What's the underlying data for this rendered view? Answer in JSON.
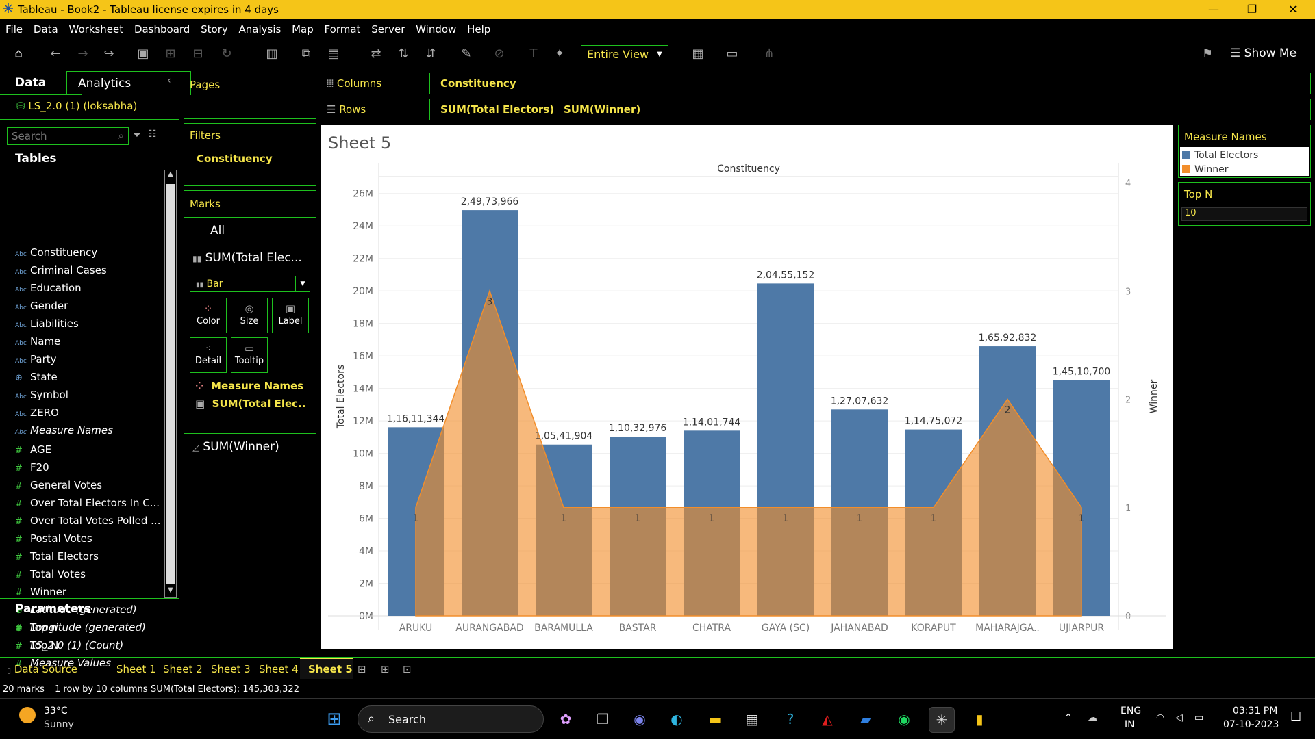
{
  "window": {
    "title": "Tableau - Book2 - Tableau license expires in 4 days",
    "minimize": "—",
    "restore": "❐",
    "close": "✕"
  },
  "menu": [
    "File",
    "Data",
    "Worksheet",
    "Dashboard",
    "Story",
    "Analysis",
    "Map",
    "Format",
    "Server",
    "Window",
    "Help"
  ],
  "toolbar": {
    "fit": "Entire View",
    "show_me": "Show Me"
  },
  "data_panel": {
    "tab_data": "Data",
    "tab_analytics": "Analytics",
    "datasource": "LS_2.0 (1) (loksabha)",
    "search_placeholder": "Search",
    "tables_heading": "Tables",
    "dimensions": [
      {
        "icon": "Abc",
        "name": "Constituency"
      },
      {
        "icon": "Abc",
        "name": "Criminal Cases"
      },
      {
        "icon": "Abc",
        "name": "Education"
      },
      {
        "icon": "Abc",
        "name": "Gender"
      },
      {
        "icon": "Abc",
        "name": "Liabilities"
      },
      {
        "icon": "Abc",
        "name": "Name"
      },
      {
        "icon": "Abc",
        "name": "Party"
      },
      {
        "icon": "⊕",
        "name": "State"
      },
      {
        "icon": "Abc",
        "name": "Symbol"
      },
      {
        "icon": "Abc",
        "name": "ZERO"
      },
      {
        "icon": "Abc",
        "name": "Measure Names"
      }
    ],
    "measures": [
      {
        "icon": "#",
        "name": "AGE"
      },
      {
        "icon": "#",
        "name": "F20"
      },
      {
        "icon": "#",
        "name": "General Votes"
      },
      {
        "icon": "#",
        "name": "Over Total Electors  In C..."
      },
      {
        "icon": "#",
        "name": "Over Total Votes Polled  ..."
      },
      {
        "icon": "#",
        "name": "Postal Votes"
      },
      {
        "icon": "#",
        "name": "Total Electors"
      },
      {
        "icon": "#",
        "name": "Total Votes"
      },
      {
        "icon": "#",
        "name": "Winner"
      },
      {
        "icon": "⊕",
        "name": "Latitude (generated)"
      },
      {
        "icon": "⊕",
        "name": "Longitude (generated)"
      },
      {
        "icon": "#",
        "name": "LS_2.0 (1) (Count)"
      },
      {
        "icon": "#",
        "name": "Measure Values"
      }
    ],
    "parameters_heading": "Parameters",
    "parameters": [
      "Top n",
      "Top N"
    ]
  },
  "shelves": {
    "pages": "Pages",
    "filters": "Filters",
    "filter_pill": "Constituency",
    "marks": "Marks",
    "marks_all": "All",
    "marks_sum1": "SUM(Total Elec...",
    "mark_type": "Bar",
    "btn_color": "Color",
    "btn_size": "Size",
    "btn_label": "Label",
    "btn_detail": "Detail",
    "btn_tooltip": "Tooltip",
    "pill_measure_names": "Measure Names",
    "pill_sum_total": "SUM(Total Elec..",
    "marks_sum2": "SUM(Winner)",
    "columns_label": "Columns",
    "columns_pill": "Constituency",
    "rows_label": "Rows",
    "rows_pill1": "SUM(Total Electors)",
    "rows_pill2": "SUM(Winner)"
  },
  "legend": {
    "title": "Measure Names",
    "items": [
      {
        "label": "Total Electors",
        "color": "#4e79a7"
      },
      {
        "label": "Winner",
        "color": "#f28e2b"
      }
    ],
    "topn_title": "Top N",
    "topn_value": "10"
  },
  "sheet_title": "Sheet 5",
  "chart_data": {
    "type": "bar",
    "title": "Sheet 5",
    "header": "Constituency",
    "categories": [
      "ARUKU",
      "AURANGABAD",
      "BARAMULLA",
      "BASTAR",
      "CHATRA",
      "GAYA (SC)",
      "JAHANABAD",
      "KORAPUT",
      "MAHARAJGA..",
      "UJIARPUR"
    ],
    "series": [
      {
        "name": "Total Electors",
        "type": "bar",
        "axis": "left",
        "color": "#4e79a7",
        "values": [
          11611344,
          24973966,
          10541904,
          11032976,
          11401744,
          20455152,
          12707632,
          11475072,
          16592832,
          14510700
        ],
        "labels": [
          "1,16,11,344",
          "2,49,73,966",
          "1,05,41,904",
          "1,10,32,976",
          "1,14,01,744",
          "2,04,55,152",
          "1,27,07,632",
          "1,14,75,072",
          "1,65,92,832",
          "1,45,10,700"
        ]
      },
      {
        "name": "Winner",
        "type": "area",
        "axis": "right",
        "color": "#f28e2b",
        "values": [
          1,
          3,
          1,
          1,
          1,
          1,
          1,
          1,
          2,
          1
        ]
      }
    ],
    "ylabel": "Total Electors",
    "y2label": "Winner",
    "ylim": [
      0,
      27000000
    ],
    "yticks": [
      "0M",
      "2M",
      "4M",
      "6M",
      "8M",
      "10M",
      "12M",
      "14M",
      "16M",
      "18M",
      "20M",
      "22M",
      "24M",
      "26M"
    ],
    "y2lim": [
      0,
      4
    ],
    "y2ticks": [
      "0",
      "1",
      "2",
      "3",
      "4"
    ]
  },
  "sheets": {
    "data_source": "Data Source",
    "tabs": [
      "Sheet 1",
      "Sheet 2",
      "Sheet 3",
      "Sheet 4",
      "Sheet 5"
    ],
    "active": "Sheet 5"
  },
  "status": {
    "marks": "20 marks",
    "dims": "1 row by 10 columns",
    "sum": "SUM(Total Electors): 145,303,322"
  },
  "taskbar": {
    "temp": "33°C",
    "weather": "Sunny",
    "search": "Search",
    "lang1": "ENG",
    "lang2": "IN",
    "time": "03:31 PM",
    "date": "07-10-2023"
  }
}
